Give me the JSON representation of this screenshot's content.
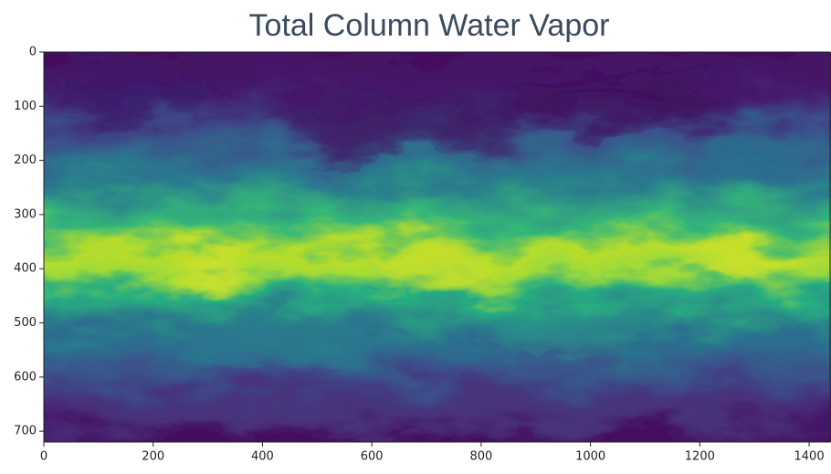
{
  "chart_data": {
    "type": "image",
    "title": "Total Column Water Vapor",
    "colormap": "viridis",
    "xlim": [
      0,
      1440
    ],
    "ylim": [
      0,
      720
    ],
    "y_inverted": true,
    "xticks": [
      0,
      200,
      400,
      600,
      800,
      1000,
      1200,
      1400
    ],
    "yticks": [
      0,
      100,
      200,
      300,
      400,
      500,
      600,
      700
    ]
  }
}
